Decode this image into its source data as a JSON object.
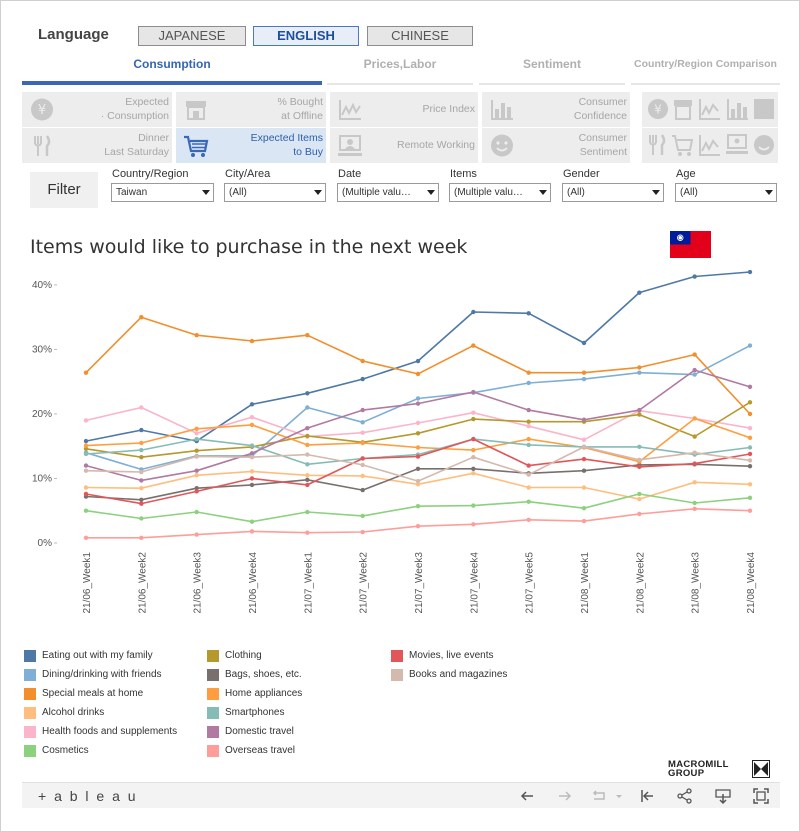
{
  "language": {
    "label": "Language",
    "options": [
      "JAPANESE",
      "ENGLISH",
      "CHINESE"
    ],
    "selected": "ENGLISH"
  },
  "tabs": [
    {
      "label": "Consumption",
      "active": true
    },
    {
      "label": "Prices,Labor",
      "active": false
    },
    {
      "label": "Sentiment",
      "active": false
    },
    {
      "label": "Country/Region Comparison",
      "active": false
    }
  ],
  "tiles": [
    {
      "line1": "Expected",
      "line2": "· Consumption",
      "icon": "yen-coin-icon",
      "active": false
    },
    {
      "line1": "% Bought",
      "line2": "at Offline",
      "icon": "store-icon",
      "active": false
    },
    {
      "line1": "Price Index",
      "line2": "",
      "icon": "line-chart-icon",
      "active": false
    },
    {
      "line1": "Consumer",
      "line2": "Confidence",
      "icon": "bar-chart-icon",
      "active": false
    },
    {
      "line1": "Dinner",
      "line2": "Last Saturday",
      "icon": "fork-knife-icon",
      "active": false
    },
    {
      "line1": "Expected Items",
      "line2": "to Buy",
      "icon": "shopping-cart-icon",
      "active": true
    },
    {
      "line1": "Remote Working",
      "line2": "",
      "icon": "remote-worker-icon",
      "active": false
    },
    {
      "line1": "Consumer",
      "line2": "Sentiment",
      "icon": "smiley-icon",
      "active": false
    }
  ],
  "filters": {
    "button_label": "Filter",
    "fields": [
      {
        "label": "Country/Region",
        "value": "Taiwan"
      },
      {
        "label": "City/Area",
        "value": "(All)"
      },
      {
        "label": "Date",
        "value": "(Multiple valu…"
      },
      {
        "label": "Items",
        "value": "(Multiple valu…"
      },
      {
        "label": "Gender",
        "value": "(All)"
      },
      {
        "label": "Age",
        "value": "(All)"
      }
    ]
  },
  "brand": {
    "logo_line1": "MACROMILL",
    "logo_line2": "GROUP",
    "footer": "+ a b l e a u"
  },
  "colors": {
    "accent": "#3a68b6",
    "flag_red": "#e3001b",
    "flag_blue": "#001c9b"
  },
  "chart_data": {
    "type": "line",
    "title": "Items would like to purchase in the next week",
    "ylim": [
      0,
      42
    ],
    "yticks": [
      0,
      10,
      20,
      30,
      40
    ],
    "ytick_labels": [
      "0%",
      "10%",
      "20%",
      "30%",
      "40%"
    ],
    "grid": false,
    "legend_position": "bottom",
    "categories": [
      "21/06_Week1",
      "21/06_Week2",
      "21/06_Week3",
      "21/06_Week4",
      "21/07_Week1",
      "21/07_Week2",
      "21/07_Week3",
      "21/07_Week4",
      "21/07_Week5",
      "21/08_Week1",
      "21/08_Week2",
      "21/08_Week3",
      "21/08_Week4"
    ],
    "series": [
      {
        "name": "Eating out with my family",
        "color": "#4e79a7",
        "values": [
          15.8,
          17.5,
          15.8,
          21.5,
          23.2,
          25.4,
          28.2,
          35.8,
          35.6,
          31.0,
          38.8,
          41.3,
          42.0
        ]
      },
      {
        "name": "Dining/drinking with friends",
        "color": "#7fafd6",
        "values": [
          14.0,
          11.4,
          13.5,
          13.5,
          21.0,
          18.7,
          22.4,
          23.3,
          24.8,
          25.4,
          26.4,
          26.1,
          30.6
        ]
      },
      {
        "name": "Special meals at home",
        "color": "#f28e2b",
        "values": [
          26.4,
          35.0,
          32.2,
          31.3,
          32.2,
          28.2,
          26.2,
          30.6,
          26.4,
          26.4,
          27.2,
          29.2,
          20.0
        ]
      },
      {
        "name": "Alcohol drinks",
        "color": "#ffbe7d",
        "values": [
          8.6,
          8.5,
          10.5,
          11.1,
          10.5,
          10.4,
          9.1,
          10.8,
          8.6,
          8.6,
          6.8,
          9.4,
          9.1
        ]
      },
      {
        "name": "Health foods and supplements",
        "color": "#fbb4c9",
        "values": [
          19.0,
          21.0,
          17.0,
          19.5,
          16.5,
          17.1,
          18.6,
          20.2,
          18.1,
          16.0,
          20.5,
          19.3,
          17.8
        ]
      },
      {
        "name": "Cosmetics",
        "color": "#8cd17d",
        "values": [
          5.0,
          3.8,
          4.8,
          3.3,
          4.8,
          4.2,
          5.7,
          5.8,
          6.4,
          5.4,
          7.6,
          6.2,
          7.0
        ]
      },
      {
        "name": "Clothing",
        "color": "#b6992d",
        "values": [
          14.6,
          13.3,
          14.3,
          14.9,
          16.6,
          15.6,
          17.0,
          19.2,
          18.8,
          18.8,
          19.9,
          16.5,
          21.8
        ]
      },
      {
        "name": "Bags, shoes, etc.",
        "color": "#79706e",
        "values": [
          7.2,
          6.7,
          8.5,
          9.0,
          9.8,
          8.2,
          11.5,
          11.5,
          10.8,
          11.2,
          12.1,
          12.2,
          11.9
        ]
      },
      {
        "name": "Home appliances",
        "color": "#ff9d3f",
        "values": [
          15.1,
          15.5,
          17.7,
          18.3,
          15.2,
          15.5,
          14.8,
          14.4,
          16.1,
          14.8,
          12.6,
          19.3,
          16.3
        ]
      },
      {
        "name": "Smartphones",
        "color": "#86bcb6",
        "values": [
          13.8,
          14.4,
          16.1,
          15.1,
          12.2,
          13.1,
          13.7,
          16.1,
          15.2,
          14.9,
          14.9,
          13.7,
          14.8
        ]
      },
      {
        "name": "Domestic travel",
        "color": "#b07aa1",
        "values": [
          12.0,
          9.7,
          11.2,
          13.9,
          17.8,
          20.6,
          21.6,
          23.4,
          20.6,
          19.1,
          20.6,
          26.8,
          24.2
        ]
      },
      {
        "name": "Overseas travel",
        "color": "#ff9d9a",
        "values": [
          0.8,
          0.8,
          1.3,
          1.8,
          1.6,
          1.7,
          2.6,
          2.9,
          3.6,
          3.4,
          4.5,
          5.3,
          5.0
        ]
      },
      {
        "name": "Movies, live events",
        "color": "#e15759",
        "values": [
          7.6,
          6.1,
          8.0,
          10.0,
          9.0,
          13.1,
          13.4,
          16.1,
          12.0,
          13.0,
          11.8,
          12.3,
          13.8
        ]
      },
      {
        "name": "Books and magazines",
        "color": "#d4b9ad",
        "values": [
          11.2,
          11.0,
          13.4,
          13.3,
          13.7,
          12.1,
          9.6,
          13.3,
          10.6,
          14.9,
          12.9,
          14.0,
          12.8
        ]
      }
    ]
  }
}
